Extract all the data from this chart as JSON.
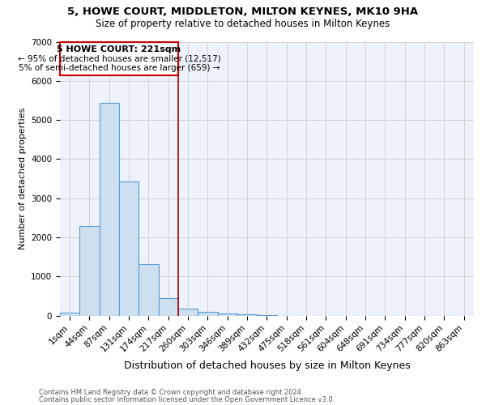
{
  "title1": "5, HOWE COURT, MIDDLETON, MILTON KEYNES, MK10 9HA",
  "title2": "Size of property relative to detached houses in Milton Keynes",
  "xlabel": "Distribution of detached houses by size in Milton Keynes",
  "ylabel": "Number of detached properties",
  "footnote1": "Contains HM Land Registry data © Crown copyright and database right 2024.",
  "footnote2": "Contains public sector information licensed under the Open Government Licence v3.0.",
  "annotation_line1": "5 HOWE COURT: 221sqm",
  "annotation_line2": "← 95% of detached houses are smaller (12,517)",
  "annotation_line3": "5% of semi-detached houses are larger (659) →",
  "bar_labels": [
    "1sqm",
    "44sqm",
    "87sqm",
    "131sqm",
    "174sqm",
    "217sqm",
    "260sqm",
    "303sqm",
    "346sqm",
    "389sqm",
    "432sqm",
    "475sqm",
    "518sqm",
    "561sqm",
    "604sqm",
    "648sqm",
    "691sqm",
    "734sqm",
    "777sqm",
    "820sqm",
    "863sqm"
  ],
  "bar_values": [
    80,
    2280,
    5440,
    3420,
    1310,
    450,
    180,
    90,
    50,
    30,
    5,
    0,
    0,
    0,
    0,
    0,
    0,
    0,
    0,
    0,
    0
  ],
  "bar_color": "#cce0f0",
  "bar_edgecolor": "#5b9bd5",
  "redline_x": 5.5,
  "redline_color": "#aa0000",
  "ylim": [
    0,
    7000
  ],
  "yticks": [
    0,
    1000,
    2000,
    3000,
    4000,
    5000,
    6000,
    7000
  ],
  "grid_color": "#cccccc",
  "bg_color": "#eef2fa",
  "annotation_box_edgecolor": "#cc0000",
  "title1_fontsize": 9.5,
  "title2_fontsize": 8.5,
  "xlabel_fontsize": 9,
  "ylabel_fontsize": 8,
  "tick_fontsize": 7.5,
  "annot_fontsize1": 8,
  "annot_fontsize2": 7.5
}
